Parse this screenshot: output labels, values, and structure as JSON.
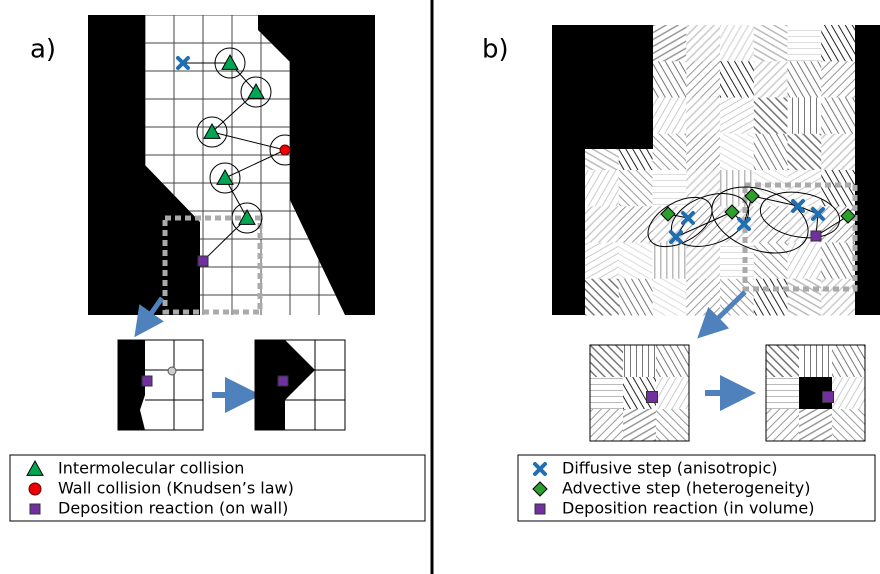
{
  "panels": [
    {
      "label": "a)",
      "legend": [
        "Intermolecular collision",
        "Wall collision (Knudsen’s law)",
        "Deposition reaction (on wall)"
      ]
    },
    {
      "label": "b)",
      "legend": [
        "Diffusive step (anisotropic)",
        "Advective step (heterogeneity)",
        "Deposition reaction (in volume)"
      ]
    }
  ]
}
